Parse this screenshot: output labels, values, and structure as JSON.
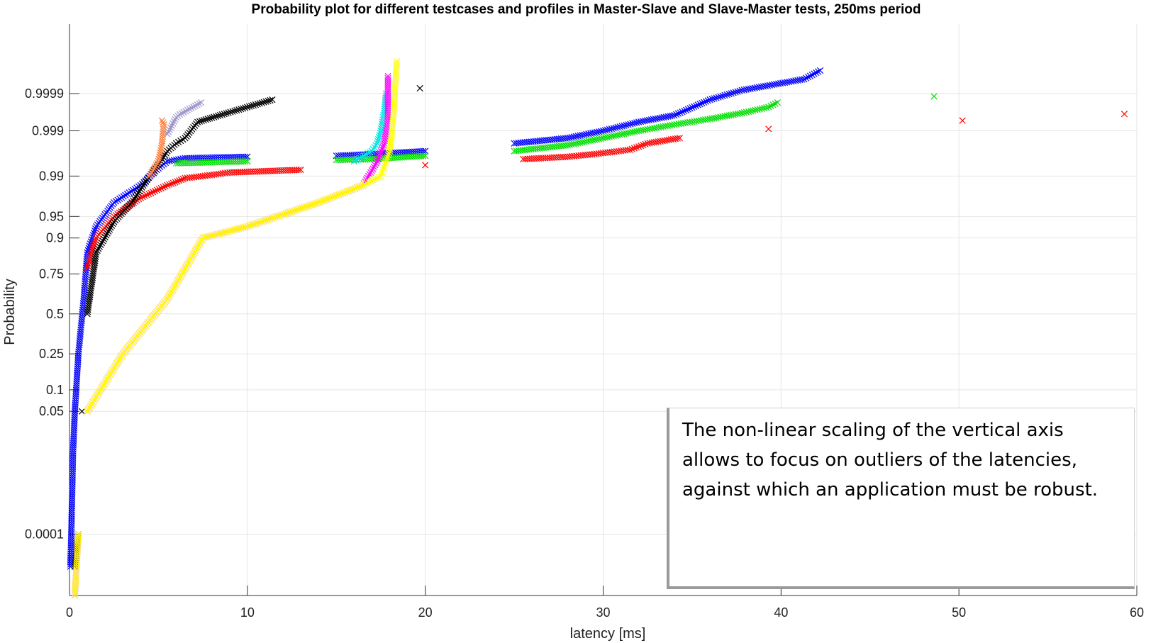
{
  "chart_data": {
    "type": "scatter",
    "title": "Probability plot for different testcases and profiles in Master-Slave and Slave-Master tests, 250ms period",
    "xlabel": "latency [ms]",
    "ylabel": "Probability",
    "xlim": [
      0,
      60
    ],
    "x_ticks": [
      0,
      10,
      20,
      30,
      40,
      50,
      60
    ],
    "y_scale": "normal-probability",
    "y_ticks": [
      0.0001,
      0.05,
      0.1,
      0.25,
      0.5,
      0.75,
      0.9,
      0.95,
      0.99,
      0.999,
      0.9999
    ],
    "y_tick_labels": [
      "0.0001",
      "0.05",
      "0.1",
      "0.25",
      "0.5",
      "0.75",
      "0.9",
      "0.95",
      "0.99",
      "0.999",
      "0.9999"
    ],
    "ylim": [
      1e-06,
      0.9999995
    ],
    "grid": true,
    "marker": "x",
    "series": [
      {
        "color": "#0000ff",
        "points": [
          [
            0.05,
            1e-05
          ],
          [
            0.1,
            0.0001
          ],
          [
            0.2,
            0.01
          ],
          [
            0.3,
            0.05
          ],
          [
            0.5,
            0.25
          ],
          [
            0.8,
            0.6
          ],
          [
            1.0,
            0.85
          ],
          [
            1.5,
            0.93
          ],
          [
            2.5,
            0.97
          ],
          [
            4,
            0.985
          ],
          [
            5,
            0.993
          ],
          [
            5.5,
            0.995
          ],
          [
            6.5,
            0.9957
          ],
          [
            10,
            0.996
          ],
          [
            15,
            0.9962
          ],
          [
            17,
            0.9965
          ],
          [
            20,
            0.997
          ],
          [
            25,
            0.998
          ],
          [
            28,
            0.9985
          ],
          [
            30,
            0.999
          ],
          [
            32,
            0.9994
          ],
          [
            34,
            0.9996
          ],
          [
            36,
            0.99985
          ],
          [
            37.8,
            0.99992
          ],
          [
            41.3,
            0.999963
          ],
          [
            42.2,
            0.99998
          ]
        ]
      },
      {
        "color": "#00dd00",
        "points": [
          [
            6,
            0.9945
          ],
          [
            10,
            0.995
          ],
          [
            15,
            0.9953
          ],
          [
            17,
            0.9955
          ],
          [
            20,
            0.9962
          ],
          [
            25,
            0.997
          ],
          [
            28,
            0.9978
          ],
          [
            30,
            0.9985
          ],
          [
            32,
            0.999
          ],
          [
            34,
            0.9993
          ],
          [
            36,
            0.9995
          ],
          [
            37.8,
            0.99965
          ],
          [
            39.3,
            0.99976
          ],
          [
            39.8,
            0.99982
          ],
          [
            48.6,
            0.99988
          ]
        ]
      },
      {
        "color": "#ff0000",
        "points": [
          [
            1,
            0.78
          ],
          [
            1.5,
            0.9
          ],
          [
            2.5,
            0.95
          ],
          [
            4,
            0.975
          ],
          [
            5.5,
            0.985
          ],
          [
            6.5,
            0.989
          ],
          [
            7.5,
            0.99
          ],
          [
            9,
            0.9915
          ],
          [
            13,
            0.9925
          ],
          [
            20,
            0.994
          ],
          [
            25.5,
            0.9955
          ],
          [
            28,
            0.996
          ],
          [
            29.5,
            0.9965
          ],
          [
            31.5,
            0.9972
          ],
          [
            32.5,
            0.998
          ],
          [
            34.3,
            0.9985
          ],
          [
            39.3,
            0.9991
          ],
          [
            50.2,
            0.99945
          ],
          [
            59.3,
            0.99963
          ]
        ]
      },
      {
        "color": "#000000",
        "points": [
          [
            0.3,
            1e-05
          ],
          [
            0.5,
            0.0001
          ],
          [
            0.7,
            0.05
          ],
          [
            1,
            0.5
          ],
          [
            1.5,
            0.85
          ],
          [
            2.5,
            0.94
          ],
          [
            3.5,
            0.97
          ],
          [
            4.5,
            0.99
          ],
          [
            5,
            0.994
          ],
          [
            5.5,
            0.997
          ],
          [
            6,
            0.998
          ],
          [
            6.5,
            0.9985
          ],
          [
            7.2,
            0.9994
          ],
          [
            8.7,
            0.99963
          ],
          [
            11.4,
            0.99985
          ],
          [
            19.7,
            0.99993
          ]
        ]
      },
      {
        "color": "#ff8040",
        "points": [
          [
            4.5,
            0.99
          ],
          [
            5,
            0.995
          ],
          [
            5.2,
            0.998
          ],
          [
            5.3,
            0.9993
          ],
          [
            5.2,
            0.99945
          ]
        ]
      },
      {
        "color": "#a098c8",
        "points": [
          [
            5.5,
            0.9988
          ],
          [
            6,
            0.99955
          ],
          [
            6.2,
            0.99962
          ],
          [
            7.4,
            0.99982
          ]
        ]
      },
      {
        "color": "#00e0e0",
        "points": [
          [
            16,
            0.995
          ],
          [
            17,
            0.997
          ],
          [
            17.3,
            0.998
          ],
          [
            17.5,
            0.999
          ],
          [
            17.7,
            0.9997
          ],
          [
            17.8,
            0.9999
          ]
        ]
      },
      {
        "color": "#ff00ff",
        "points": [
          [
            0.3,
            1e-06
          ],
          [
            0.5,
            0.0001
          ],
          [
            1,
            0.05
          ],
          [
            3,
            0.25
          ],
          [
            5.5,
            0.6
          ],
          [
            7.5,
            0.9
          ],
          [
            10,
            0.93
          ],
          [
            14,
            0.97
          ],
          [
            16.5,
            0.985
          ],
          [
            17.3,
            0.995
          ],
          [
            17.7,
            0.998
          ],
          [
            17.9,
            0.9995
          ],
          [
            17.9,
            0.99997
          ]
        ]
      },
      {
        "color": "#ffff00",
        "points": [
          [
            0.3,
            1e-06
          ],
          [
            0.5,
            0.0001
          ],
          [
            1,
            0.05
          ],
          [
            3,
            0.25
          ],
          [
            5.5,
            0.6
          ],
          [
            7.5,
            0.9
          ],
          [
            10,
            0.93
          ],
          [
            14,
            0.97
          ],
          [
            16.5,
            0.985
          ],
          [
            17.5,
            0.99
          ],
          [
            18,
            0.997
          ],
          [
            18.2,
            0.9995
          ],
          [
            18.4,
            0.99999
          ]
        ]
      }
    ],
    "annotation": "The non-linear scaling of the vertical axis allows to focus on outliers of the latencies, against which an application must be robust."
  }
}
